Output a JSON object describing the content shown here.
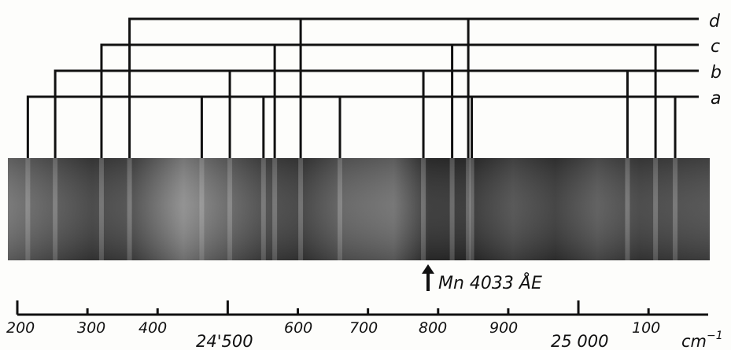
{
  "figure": {
    "series_labels": [
      "d",
      "c",
      "b",
      "a"
    ],
    "annotation": "Mn 4033 ÅE",
    "scale": {
      "tick_labels": [
        "200",
        "300",
        "400",
        "24'500",
        "600",
        "700",
        "800",
        "900",
        "25 000",
        "100"
      ],
      "unit": "cm"
    }
  },
  "chart_data": {
    "type": "line-diagram",
    "title": "",
    "x_unit": "cm⁻¹",
    "x_range": [
      24200,
      25150
    ],
    "series": [
      {
        "name": "a",
        "lines_cm-1": [
          24215,
          24463,
          24551,
          24660,
          24848,
          25138
        ]
      },
      {
        "name": "b",
        "lines_cm-1": [
          24254,
          24503,
          24779,
          25070
        ]
      },
      {
        "name": "c",
        "lines_cm-1": [
          24320,
          24567,
          24820,
          25110
        ]
      },
      {
        "name": "d",
        "lines_cm-1": [
          24360,
          24604,
          24843
        ]
      }
    ],
    "reference_line": {
      "label": "Mn 4033 ÅE",
      "position_cm-1": 24783
    }
  }
}
